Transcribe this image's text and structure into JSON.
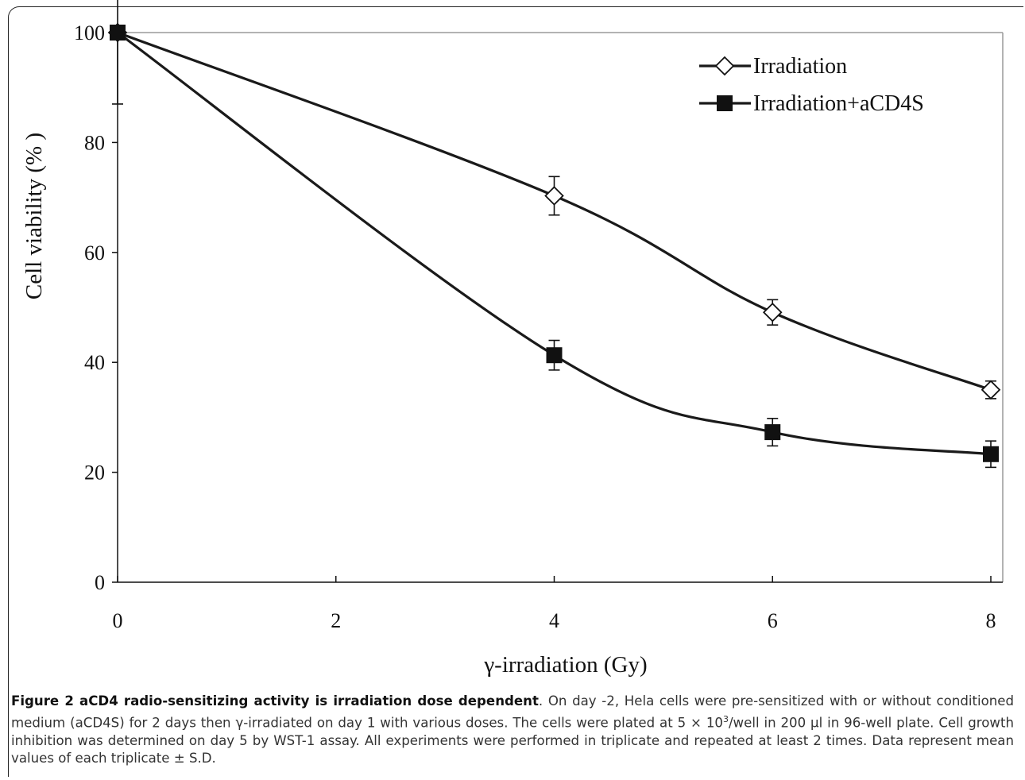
{
  "chart_data": {
    "type": "line",
    "xlabel": "γ-irradiation (Gy)",
    "ylabel": "Cell viability (% )",
    "xlim": [
      0,
      8
    ],
    "ylim": [
      0,
      100
    ],
    "x_ticks": [
      "0",
      "2",
      "4",
      "6",
      "8"
    ],
    "y_ticks": [
      "0",
      "20",
      "40",
      "60",
      "80",
      "100"
    ],
    "grid": false,
    "legend_position": "top-right",
    "series": [
      {
        "name": "Irradiation",
        "marker": "open-diamond",
        "x": [
          0,
          4,
          6,
          8
        ],
        "y": [
          100,
          70.3,
          49.1,
          35.0
        ],
        "error": [
          0.5,
          3.5,
          2.3,
          1.6
        ]
      },
      {
        "name": "Irradiation+aCD4S",
        "marker": "filled-square",
        "x": [
          0,
          4,
          6,
          8
        ],
        "y": [
          100,
          41.3,
          27.3,
          23.3
        ],
        "error": [
          13.0,
          2.7,
          2.5,
          2.4
        ]
      }
    ]
  },
  "caption": {
    "title": "Figure 2 aCD4 radio-sensitizing activity is irradiation dose dependent",
    "body_1": ". On day -2, Hela cells were pre-sensitized with or without conditioned medium (aCD4S) for 2 days then γ-irradiated on day 1 with various doses. The cells were plated at 5 × 10",
    "sup": "3",
    "body_2": "/well in 200 µl in 96-well plate. Cell growth inhibition was determined on day 5 by WST-1 assay. All experiments were performed in triplicate and repeated at least 2 times. Data represent mean values of each triplicate ± S.D."
  }
}
